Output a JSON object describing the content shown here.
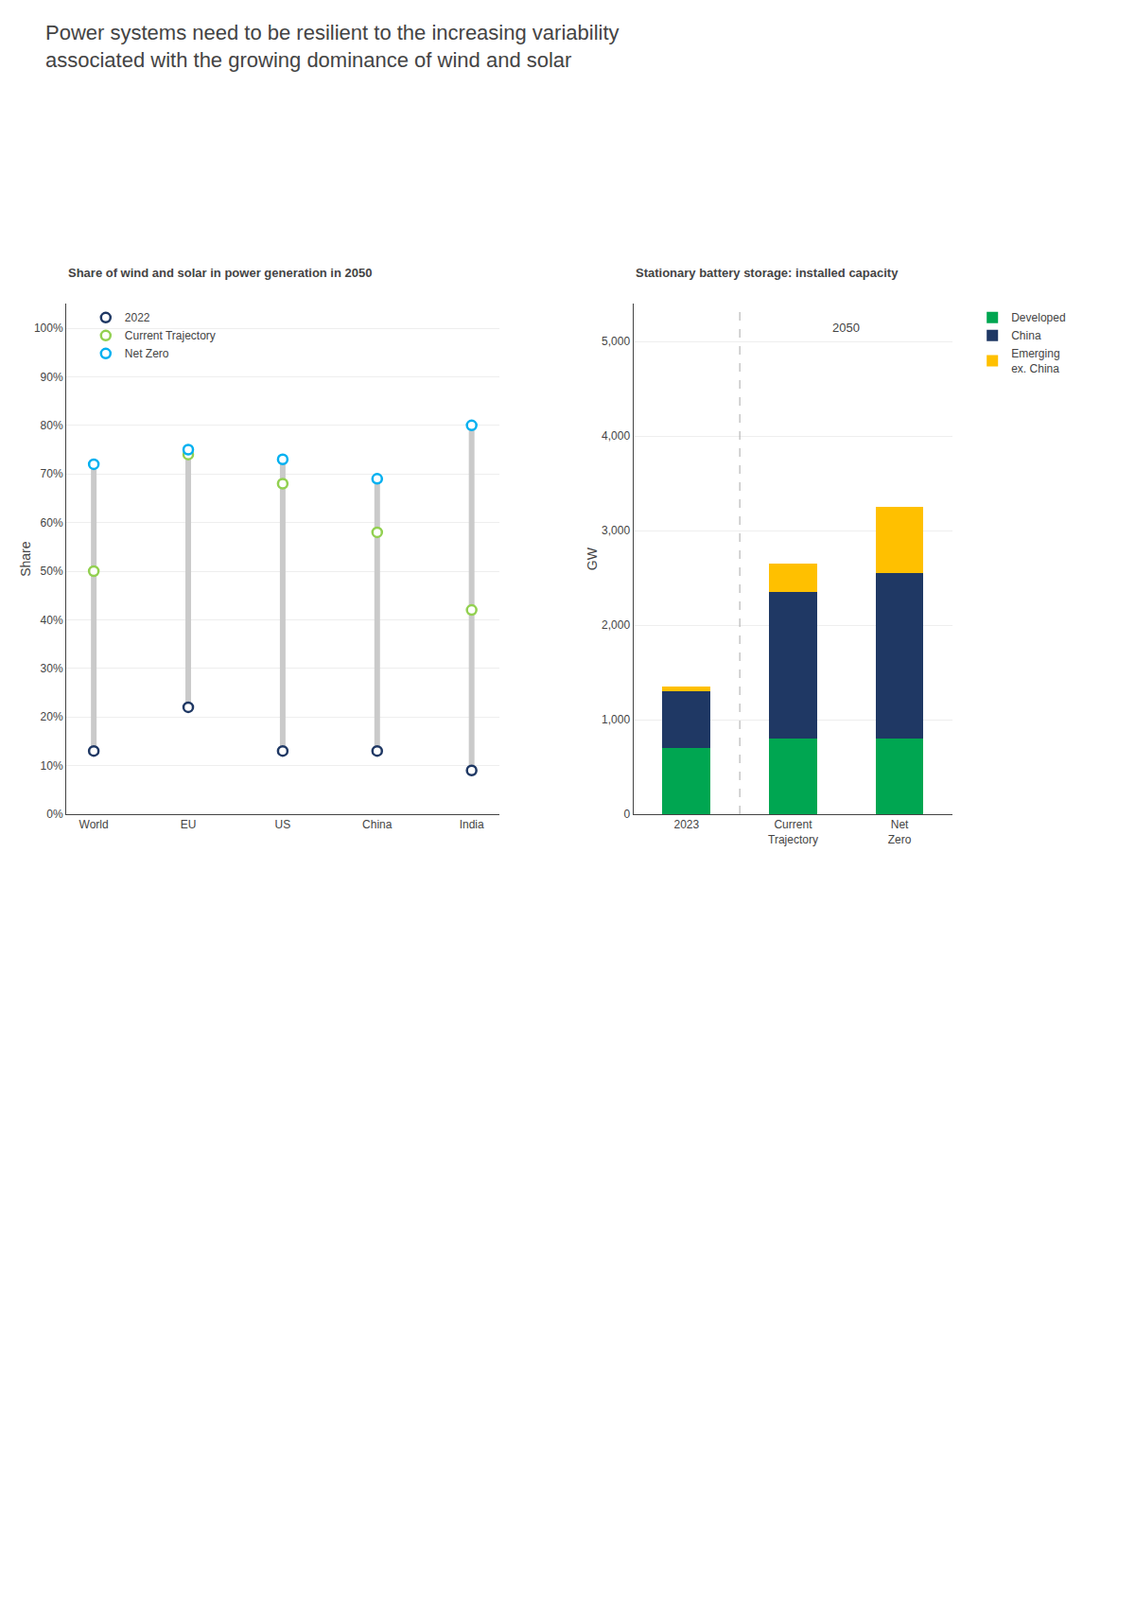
{
  "title": "Power systems need to be resilient to the increasing variability\nassociated with the growing dominance of wind and solar",
  "chart_data": [
    {
      "type": "scatter",
      "title": "Share of wind and solar in power generation in 2050",
      "ylabel": "Share",
      "categories": [
        "World",
        "EU",
        "US",
        "China",
        "India"
      ],
      "series": [
        {
          "name": "2022",
          "color": "#1F3864",
          "values": [
            0.13,
            0.22,
            0.13,
            0.13,
            0.09
          ]
        },
        {
          "name": "Current Trajectory",
          "color": "#92D050",
          "values": [
            0.5,
            0.74,
            0.68,
            0.58,
            0.42
          ]
        },
        {
          "name": "Net Zero",
          "color": "#00B0F0",
          "values": [
            0.72,
            0.75,
            0.73,
            0.69,
            0.8
          ]
        }
      ],
      "ylim": [
        0.0,
        1.05
      ],
      "yticks": [
        {
          "value": 0.0,
          "label": "0%"
        },
        {
          "value": 0.1,
          "label": "10%"
        },
        {
          "value": 0.2,
          "label": "20%"
        },
        {
          "value": 0.3,
          "label": "30%"
        },
        {
          "value": 0.4,
          "label": "40%"
        },
        {
          "value": 0.5,
          "label": "50%"
        },
        {
          "value": 0.6,
          "label": "60%"
        },
        {
          "value": 0.7,
          "label": "70%"
        },
        {
          "value": 0.8,
          "label": "80%"
        },
        {
          "value": 0.9,
          "label": "90%"
        },
        {
          "value": 1.0,
          "label": "100%"
        }
      ],
      "grid": true,
      "legend": "upper left"
    },
    {
      "type": "bar",
      "stacked": true,
      "title": "Stationary battery storage: installed capacity",
      "ylabel": "GW",
      "categories": [
        "2023",
        "Current\nTrajectory",
        "Net\nZero"
      ],
      "series": [
        {
          "name": "Developed",
          "color": "#00A651",
          "values": [
            700,
            800,
            800
          ]
        },
        {
          "name": "China",
          "color": "#1F3864",
          "values": [
            600,
            1550,
            1750
          ]
        },
        {
          "name": "Emerging\nex. China",
          "color": "#FFC000",
          "values": [
            50,
            300,
            700
          ]
        }
      ],
      "ylim": [
        0,
        5400
      ],
      "yticks": [
        0,
        {
          "value": 1000,
          "label": "1,000"
        },
        {
          "value": 2000,
          "label": "2,000"
        },
        {
          "value": 3000,
          "label": "3,000"
        },
        {
          "value": 4000,
          "label": "4,000"
        },
        {
          "value": 5000,
          "label": "5,000"
        }
      ],
      "grid": true,
      "legend": "upper right",
      "annotations": [
        {
          "text": "2050",
          "categories": [
            "Current\nTrajectory",
            "Net\nZero"
          ],
          "y": 5050
        }
      ]
    }
  ]
}
